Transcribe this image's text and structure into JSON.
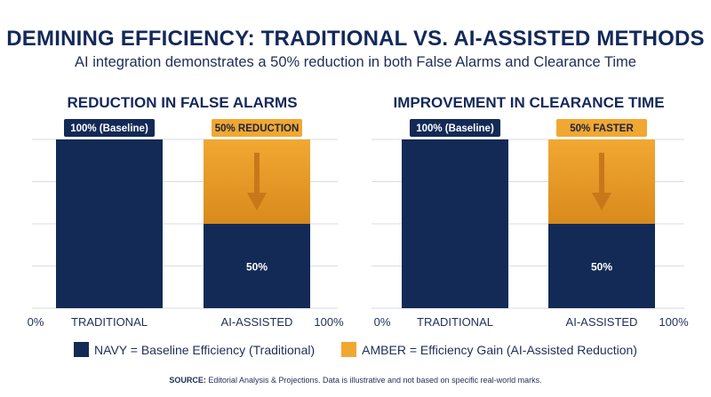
{
  "title": "DEMINING EFFICIENCY: TRADITIONAL VS. AI-ASSISTED METHODS",
  "subtitle": "AI integration demonstrates a 50% reduction in both False Alarms and Clearance Time",
  "colors": {
    "navy": "#132a56",
    "amber": "#f1a832",
    "amber_dark": "#d98a1c",
    "grid": "#d8dbe2"
  },
  "chart_data": [
    {
      "type": "bar",
      "title": "REDUCTION IN FALSE ALARMS",
      "categories": [
        "TRADITIONAL",
        "AI-ASSISTED"
      ],
      "series": [
        {
          "name": "NAVY = Baseline Efficiency (Traditional)",
          "values": [
            100,
            50
          ]
        },
        {
          "name": "AMBER = Efficiency Gain (AI-Assisted Reduction)",
          "values": [
            0,
            50
          ]
        }
      ],
      "bar_labels": [
        "100% (Baseline)",
        "50% REDUCTION"
      ],
      "inner_labels": [
        "",
        "50%"
      ],
      "axis_labels": {
        "left": "0%",
        "right": "100%"
      },
      "ylim": [
        0,
        100
      ],
      "grid": true
    },
    {
      "type": "bar",
      "title": "IMPROVEMENT IN CLEARANCE TIME",
      "categories": [
        "TRADITIONAL",
        "AI-ASSISTED"
      ],
      "series": [
        {
          "name": "NAVY = Baseline Efficiency (Traditional)",
          "values": [
            100,
            50
          ]
        },
        {
          "name": "AMBER = Efficiency Gain (AI-Assisted Reduction)",
          "values": [
            0,
            50
          ]
        }
      ],
      "bar_labels": [
        "100% (Baseline)",
        "50% FASTER"
      ],
      "inner_labels": [
        "",
        "50%"
      ],
      "axis_labels": {
        "left": "0%",
        "right": "100%"
      },
      "ylim": [
        0,
        100
      ],
      "grid": true
    }
  ],
  "legend": {
    "navy_label": "NAVY = Baseline Efficiency (Traditional)",
    "amber_label": "AMBER = Efficiency Gain (AI-Assisted Reduction)"
  },
  "source": {
    "label": "SOURCE:",
    "text": " Editorial Analysis & Projections. Data is illustrative and not based on specific real-world marks."
  }
}
